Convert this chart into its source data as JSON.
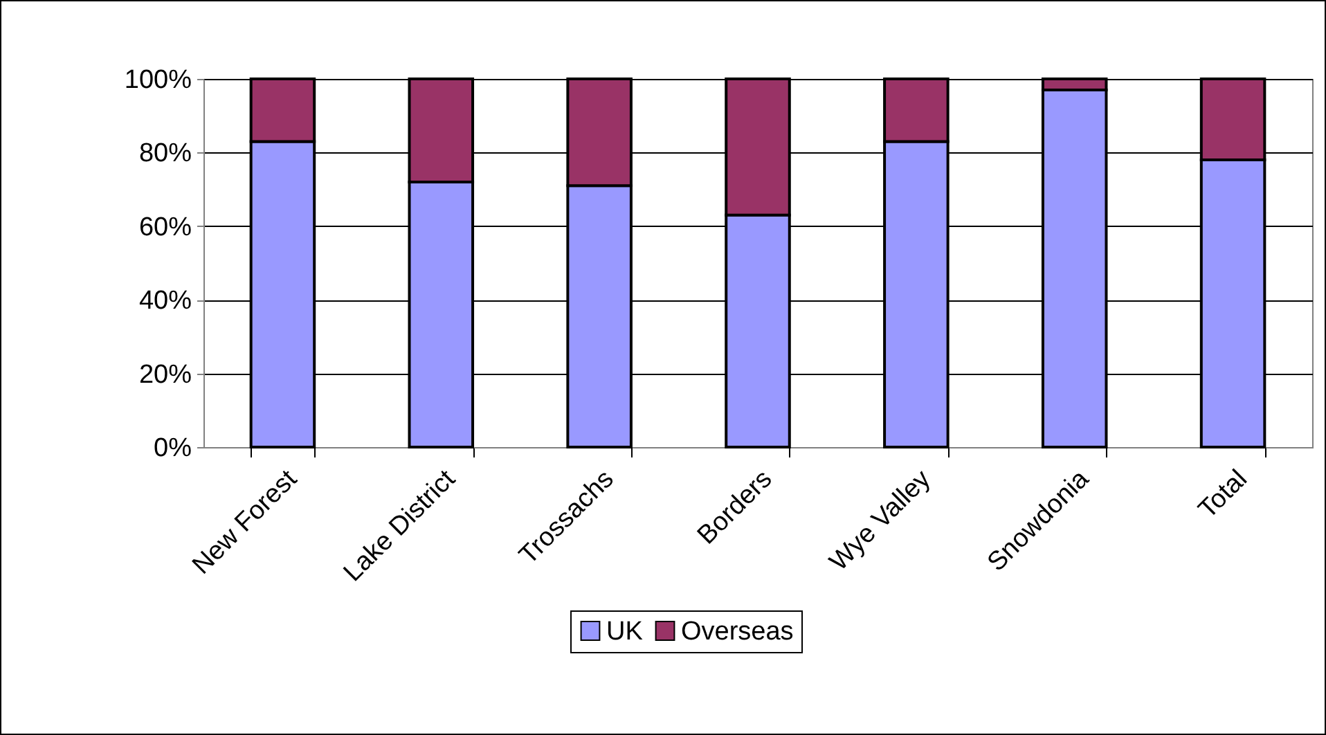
{
  "chart_data": {
    "type": "bar",
    "stacked": true,
    "categories": [
      "New Forest",
      "Lake District",
      "Trossachs",
      "Borders",
      "Wye Valley",
      "Snowdonia",
      "Total"
    ],
    "series": [
      {
        "name": "UK",
        "color": "#9999ff",
        "values": [
          83,
          72,
          71,
          63,
          83,
          97,
          78
        ]
      },
      {
        "name": "Overseas",
        "color": "#993366",
        "values": [
          17,
          28,
          29,
          37,
          17,
          3,
          22
        ]
      }
    ],
    "ylim": [
      0,
      100
    ],
    "yticks": [
      {
        "value": 0,
        "label": "0%"
      },
      {
        "value": 20,
        "label": "20%"
      },
      {
        "value": 40,
        "label": "40%"
      },
      {
        "value": 60,
        "label": "60%"
      },
      {
        "value": 80,
        "label": "80%"
      },
      {
        "value": 100,
        "label": "100%"
      }
    ],
    "grid": "y",
    "legend": "bottom"
  }
}
